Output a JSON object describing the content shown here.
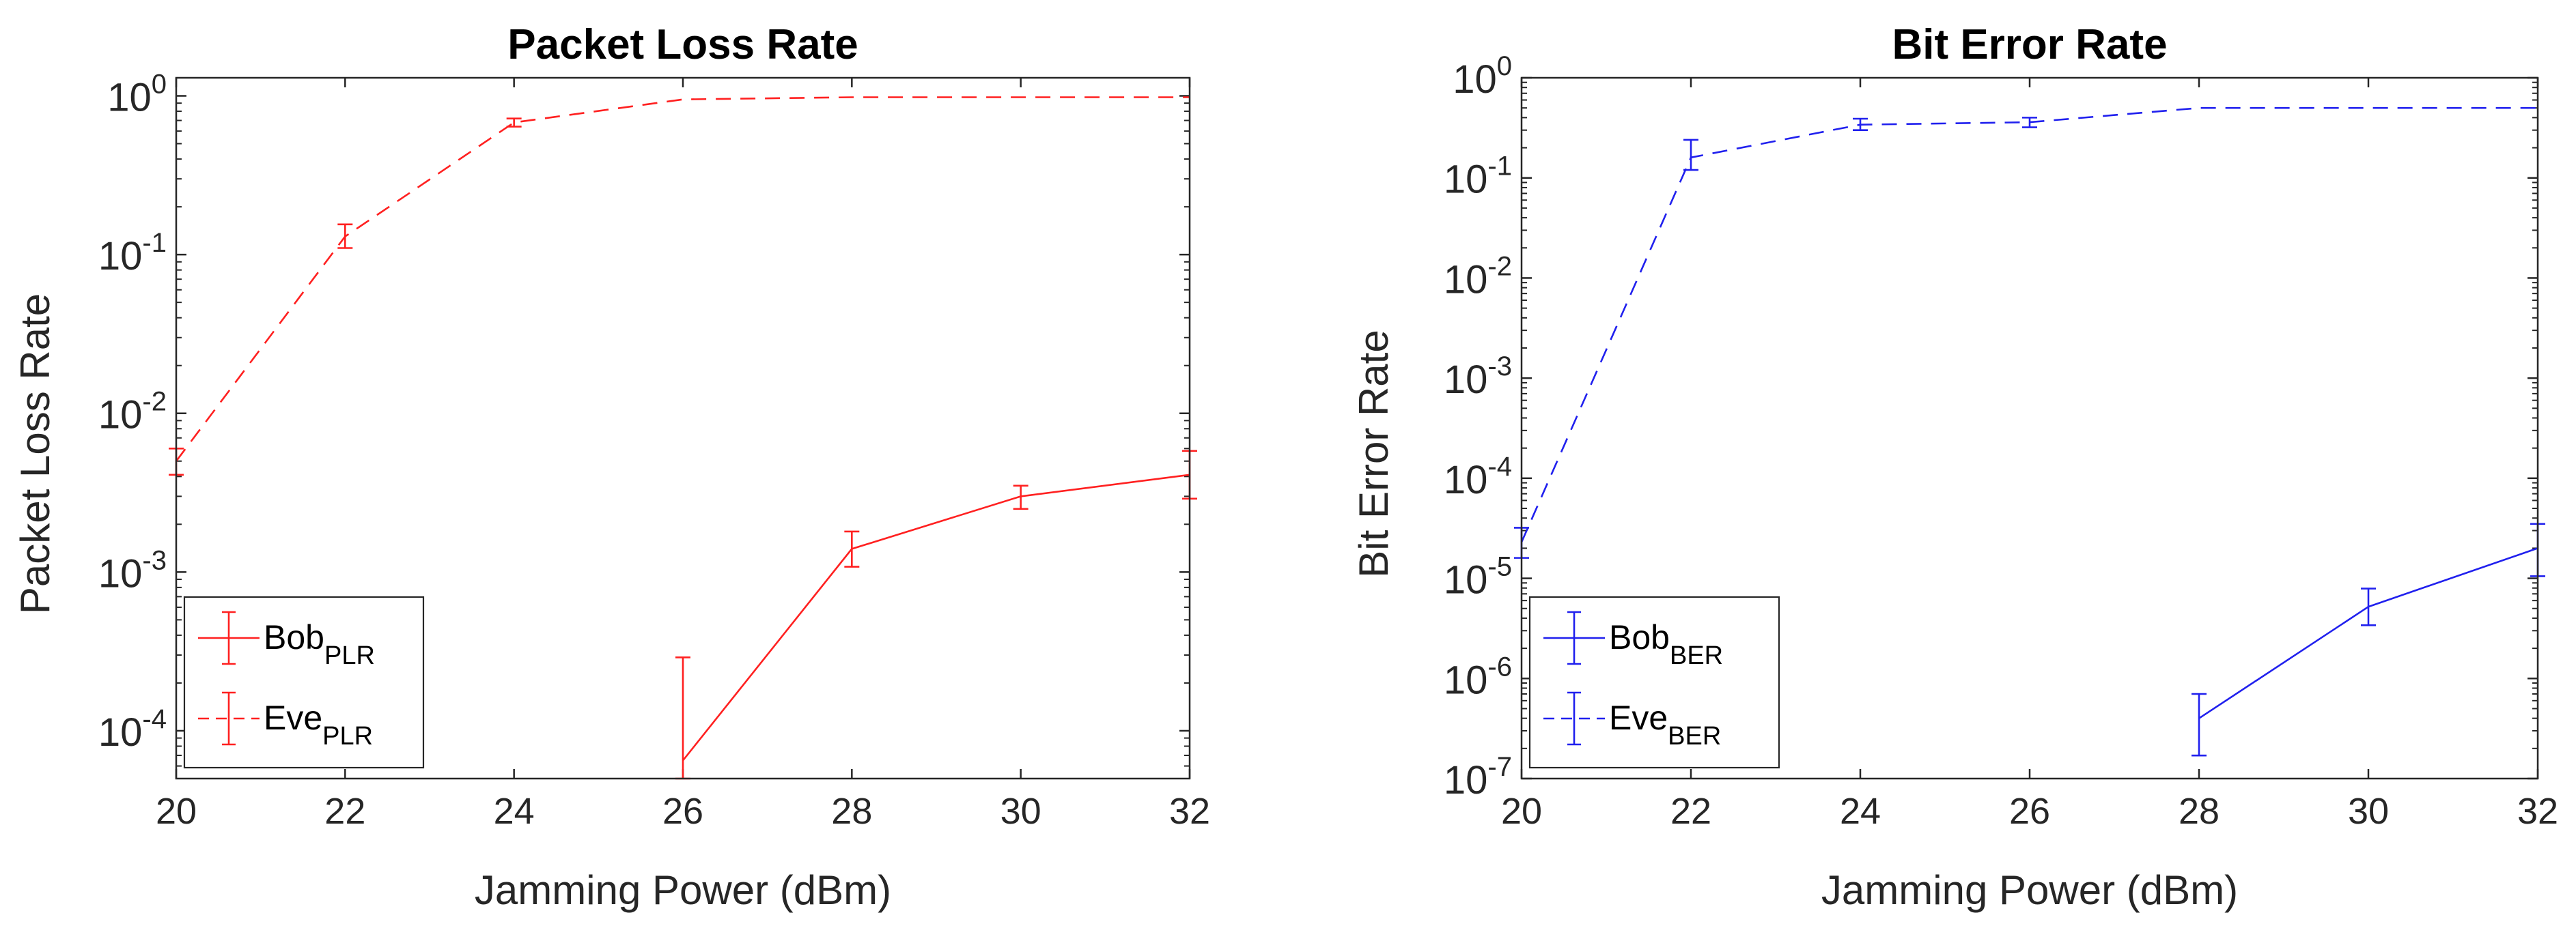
{
  "chart_data": [
    {
      "type": "line",
      "title": "Packet Loss Rate",
      "xlabel": "Jamming Power (dBm)",
      "ylabel": "Packet Loss Rate",
      "yscale": "log",
      "xlim": [
        20,
        32
      ],
      "ylim": [
        5e-05,
        1.3
      ],
      "x_ticks": [
        "20",
        "22",
        "24",
        "26",
        "28",
        "30",
        "32"
      ],
      "y_ticks": [
        {
          "base": "10",
          "exp": "-4",
          "value": 0.0001
        },
        {
          "base": "10",
          "exp": "-3",
          "value": 0.001
        },
        {
          "base": "10",
          "exp": "-2",
          "value": 0.01
        },
        {
          "base": "10",
          "exp": "-1",
          "value": 0.1
        },
        {
          "base": "10",
          "exp": "0",
          "value": 1
        }
      ],
      "legend_position": "bottom-left",
      "color": "#ff2020",
      "series": [
        {
          "name": "Bob",
          "subscript": "PLR",
          "style": "solid",
          "x": [
            26,
            28,
            30,
            32
          ],
          "y": [
            6.5e-05,
            0.0014,
            0.003,
            0.0041
          ],
          "err_low": [
            5e-05,
            0.00108,
            0.0025,
            0.0029
          ],
          "err_high": [
            0.00029,
            0.0018,
            0.0035,
            0.0058
          ]
        },
        {
          "name": "Eve",
          "subscript": "PLR",
          "style": "dashed",
          "x": [
            20,
            22,
            24,
            26,
            28,
            30,
            32
          ],
          "y": [
            0.005,
            0.13,
            0.68,
            0.95,
            0.98,
            0.98,
            0.98
          ],
          "err_low": [
            0.0041,
            0.11,
            0.64,
            0.95,
            0.98,
            0.98,
            0.98
          ],
          "err_high": [
            0.006,
            0.155,
            0.72,
            0.95,
            0.98,
            0.98,
            0.98
          ]
        }
      ]
    },
    {
      "type": "line",
      "title": "Bit Error Rate",
      "xlabel": "Jamming Power (dBm)",
      "ylabel": "Bit Error Rate",
      "yscale": "log",
      "xlim": [
        20,
        32
      ],
      "ylim": [
        1e-07,
        1
      ],
      "x_ticks": [
        "20",
        "22",
        "24",
        "26",
        "28",
        "30",
        "32"
      ],
      "y_ticks": [
        {
          "base": "10",
          "exp": "-7",
          "value": 1e-07
        },
        {
          "base": "10",
          "exp": "-6",
          "value": 1e-06
        },
        {
          "base": "10",
          "exp": "-5",
          "value": 1e-05
        },
        {
          "base": "10",
          "exp": "-4",
          "value": 0.0001
        },
        {
          "base": "10",
          "exp": "-3",
          "value": 0.001
        },
        {
          "base": "10",
          "exp": "-2",
          "value": 0.01
        },
        {
          "base": "10",
          "exp": "-1",
          "value": 0.1
        },
        {
          "base": "10",
          "exp": "0",
          "value": 1
        }
      ],
      "legend_position": "bottom-left",
      "color": "#2020ee",
      "series": [
        {
          "name": "Bob",
          "subscript": "BER",
          "style": "solid",
          "x": [
            28,
            30,
            32
          ],
          "y": [
            4e-07,
            5.2e-06,
            2e-05
          ],
          "err_low": [
            1.7e-07,
            3.4e-06,
            1.05e-05
          ],
          "err_high": [
            7e-07,
            7.9e-06,
            3.5e-05
          ]
        },
        {
          "name": "Eve",
          "subscript": "BER",
          "style": "dashed",
          "x": [
            20,
            22,
            24,
            26,
            28,
            30,
            32
          ],
          "y": [
            2.3e-05,
            0.16,
            0.34,
            0.36,
            0.5,
            0.5,
            0.5
          ],
          "err_low": [
            1.6e-05,
            0.12,
            0.3,
            0.32,
            0.5,
            0.5,
            0.5
          ],
          "err_high": [
            3.2e-05,
            0.24,
            0.39,
            0.4,
            0.5,
            0.5,
            0.5
          ]
        }
      ]
    }
  ]
}
